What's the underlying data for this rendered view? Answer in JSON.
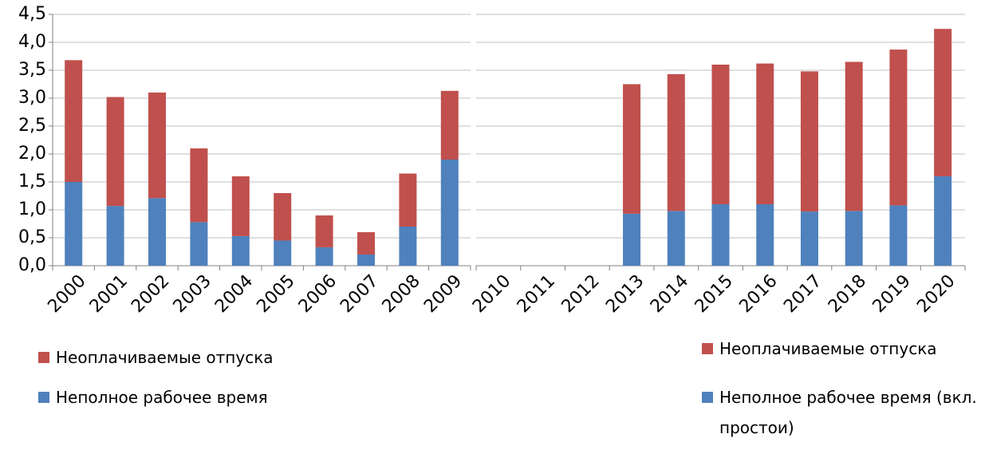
{
  "chart_data": [
    {
      "type": "bar",
      "stacked": true,
      "categories": [
        "2000",
        "2001",
        "2002",
        "2003",
        "2004",
        "2005",
        "2006",
        "2007",
        "2008",
        "2009"
      ],
      "series": [
        {
          "name": "Неполное рабочее время",
          "color": "#4f81bd",
          "values": [
            1.5,
            1.07,
            1.21,
            0.78,
            0.53,
            0.45,
            0.33,
            0.2,
            0.7,
            1.9
          ]
        },
        {
          "name": "Неоплачиваемые отпуска",
          "color": "#c0504d",
          "values": [
            2.18,
            1.95,
            1.89,
            1.32,
            1.07,
            0.85,
            0.57,
            0.4,
            0.95,
            1.23
          ]
        }
      ],
      "ylim": [
        0,
        4.5
      ],
      "yticks": [
        {
          "value": 0,
          "label": "0,0"
        },
        {
          "value": 0.5,
          "label": "0,5"
        },
        {
          "value": 1,
          "label": "1,0"
        },
        {
          "value": 1.5,
          "label": "1,5"
        },
        {
          "value": 2,
          "label": "2,0"
        },
        {
          "value": 2.5,
          "label": "2,5"
        },
        {
          "value": 3,
          "label": "3,0"
        },
        {
          "value": 3.5,
          "label": "3,5"
        },
        {
          "value": 4,
          "label": "4,0"
        },
        {
          "value": 4.5,
          "label": "4,5"
        }
      ],
      "grid": true
    },
    {
      "type": "bar",
      "stacked": true,
      "categories": [
        "2010",
        "2011",
        "2012",
        "2013",
        "2014",
        "2015",
        "2016",
        "2017",
        "2018",
        "2019",
        "2020"
      ],
      "series": [
        {
          "name": "Неполное рабочее время (вкл. простои)",
          "color": "#4f81bd",
          "values": [
            null,
            null,
            null,
            0.93,
            0.98,
            1.1,
            1.1,
            0.97,
            0.98,
            1.08,
            1.6
          ]
        },
        {
          "name": "Неоплачиваемые отпуска",
          "color": "#c0504d",
          "values": [
            null,
            null,
            null,
            2.32,
            2.45,
            2.5,
            2.52,
            2.51,
            2.67,
            2.79,
            2.64
          ]
        }
      ],
      "ylim": [
        0,
        4.5
      ],
      "yticks": [
        0,
        0.5,
        1,
        1.5,
        2,
        2.5,
        3,
        3.5,
        4,
        4.5
      ],
      "grid": true
    }
  ]
}
